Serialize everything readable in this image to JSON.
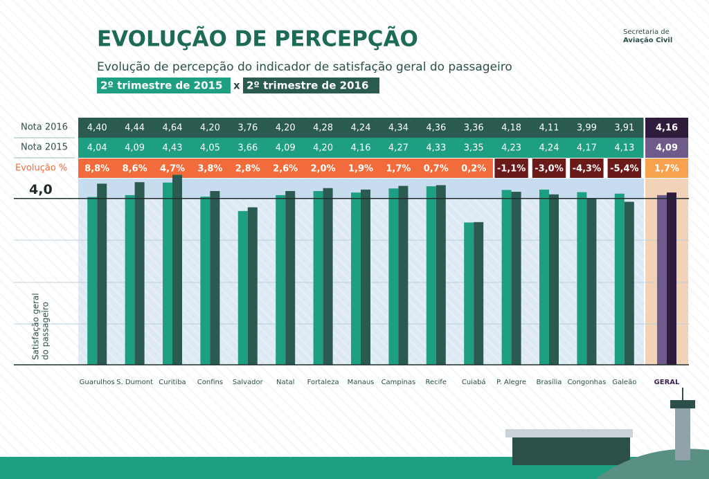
{
  "logo": {
    "line1": "Secretaria de",
    "line2": "Aviação Civil"
  },
  "chart_data": {
    "type": "bar",
    "title": "EVOLUÇÃO DE PERCEPÇÃO",
    "subtitle": "Evolução de percepção do indicador de satisfação geral do passageiro",
    "legend": [
      "2º trimestre de 2015",
      "2º trimestre de 2016"
    ],
    "legend_separator": "x",
    "y_label": [
      "Satisfação geral",
      "do passageiro"
    ],
    "categories": [
      "Guarulhos",
      "S. Dumont",
      "Curitiba",
      "Confins",
      "Salvador",
      "Natal",
      "Fortaleza",
      "Manaus",
      "Campinas",
      "Recife",
      "Cuiabá",
      "P. Alegre",
      "Brasília",
      "Congonhas",
      "Galeão",
      "GERAL"
    ],
    "highlight_last": true,
    "series": [
      {
        "name": "Nota 2016",
        "color": "#2a5a50",
        "highlight_color": "#2f1c3c",
        "values": [
          4.4,
          4.44,
          4.64,
          4.2,
          3.76,
          4.2,
          4.28,
          4.24,
          4.34,
          4.36,
          3.36,
          4.18,
          4.11,
          3.99,
          3.91,
          4.16
        ],
        "value_labels": [
          "4,40",
          "4,44",
          "4,64",
          "4,20",
          "3,76",
          "4,20",
          "4,28",
          "4,24",
          "4,34",
          "4,36",
          "3,36",
          "4,18",
          "4,11",
          "3,99",
          "3,91",
          "4,16"
        ]
      },
      {
        "name": "Nota 2015",
        "color": "#1f9f82",
        "highlight_color": "#6e5a8b",
        "values": [
          4.04,
          4.09,
          4.43,
          4.05,
          3.66,
          4.09,
          4.2,
          4.16,
          4.27,
          4.33,
          3.35,
          4.23,
          4.24,
          4.17,
          4.13,
          4.09
        ],
        "value_labels": [
          "4,04",
          "4,09",
          "4,43",
          "4,05",
          "3,66",
          "4,09",
          "4,20",
          "4,16",
          "4,27",
          "4,33",
          "3,35",
          "4,23",
          "4,24",
          "4,17",
          "4,13",
          "4,09"
        ]
      }
    ],
    "evolution": {
      "name": "Evolução %",
      "positive_color": "#f26b3a",
      "negative_color": "#6b1a1a",
      "highlight_color": "#f7a24e",
      "values": [
        8.8,
        8.6,
        4.7,
        3.8,
        2.8,
        2.6,
        2.0,
        1.9,
        1.7,
        0.7,
        0.2,
        -1.1,
        -3.0,
        -4.3,
        -5.4,
        1.7
      ],
      "value_labels": [
        "8,8%",
        "8,6%",
        "4,7%",
        "3,8%",
        "2,8%",
        "2,6%",
        "2,0%",
        "1,9%",
        "1,7%",
        "0,7%",
        "0,2%",
        "-1,1%",
        "-3,0%",
        "-4,3%",
        "-5,4%",
        "1,7%"
      ]
    },
    "ylim": [
      -0.5,
      4.5
    ],
    "yticks": [
      {
        "value": 4,
        "label": "4,0"
      }
    ]
  }
}
